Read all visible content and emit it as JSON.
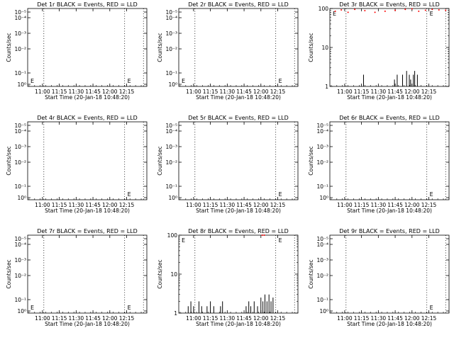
{
  "chart_data": [
    {
      "type": "line",
      "title": "Det 1r BLACK = Events, RED = LLD",
      "xlabel": "Start Time (20-Jan-18 10:48:20)",
      "ylabel": "Counts/sec",
      "ytick_labels": [
        "10⁰",
        "10⁻¹",
        "10⁻²",
        "10⁻³",
        "10⁻⁴",
        "10⁻⁵"
      ],
      "xtick_labels": [
        "11:00",
        "11:15",
        "11:30",
        "11:45",
        "12:00",
        "12:15"
      ],
      "markers": [
        "E",
        "E"
      ],
      "events": [],
      "lld": []
    },
    {
      "type": "line",
      "title": "Det 2r BLACK = Events, RED = LLD",
      "xlabel": "Start Time (20-Jan-18 10:48:20)",
      "ylabel": "Counts/sec",
      "ytick_labels": [
        "10⁰",
        "10⁻¹",
        "10⁻²",
        "10⁻³",
        "10⁻⁴",
        "10⁻⁵"
      ],
      "xtick_labels": [
        "11:00",
        "11:15",
        "11:30",
        "11:45",
        "12:00",
        "12:15"
      ],
      "markers": [
        "E",
        "E"
      ],
      "events": [],
      "lld": []
    },
    {
      "type": "line",
      "title": "Det 3r BLACK = Events, RED = LLD",
      "xlabel": "Start Time (20-Jan-18 10:48:20)",
      "ylabel": "Counts/sec",
      "ytick_labels": [
        "1",
        "10",
        "100"
      ],
      "xtick_labels": [
        "11:00",
        "11:15",
        "11:30",
        "11:45",
        "12:00",
        "12:15"
      ],
      "markers": [
        "E",
        "E"
      ],
      "events": [
        [
          11.28,
          1
        ],
        [
          11.28,
          2
        ],
        [
          11.3,
          1
        ],
        [
          11.72,
          1
        ],
        [
          11.74,
          1.5
        ],
        [
          11.76,
          1
        ],
        [
          11.78,
          2
        ],
        [
          11.8,
          1
        ],
        [
          11.84,
          1
        ],
        [
          11.86,
          2
        ],
        [
          11.9,
          1
        ],
        [
          11.92,
          2.5
        ],
        [
          11.94,
          1
        ],
        [
          11.96,
          2
        ],
        [
          11.98,
          1.5
        ],
        [
          12,
          1
        ],
        [
          12.02,
          2
        ],
        [
          12.04,
          2.5
        ],
        [
          12.06,
          1
        ],
        [
          12.08,
          2
        ],
        [
          12.1,
          1
        ]
      ],
      "lld": [
        [
          10.86,
          85
        ],
        [
          10.95,
          92
        ],
        [
          11.05,
          80
        ],
        [
          11.15,
          95
        ],
        [
          11.3,
          88
        ],
        [
          11.45,
          80
        ],
        [
          11.6,
          85
        ],
        [
          11.75,
          90
        ],
        [
          11.9,
          95
        ],
        [
          12.0,
          98
        ],
        [
          12.1,
          85
        ],
        [
          12.2,
          90
        ],
        [
          12.3,
          95
        ],
        [
          12.4,
          92
        ],
        [
          12.5,
          90
        ]
      ]
    },
    {
      "type": "line",
      "title": "Det 4r BLACK = Events, RED = LLD",
      "xlabel": "Start Time (20-Jan-18 10:48:20)",
      "ylabel": "Counts/sec",
      "ytick_labels": [
        "10⁰",
        "10⁻¹",
        "10⁻²",
        "10⁻³",
        "10⁻⁴",
        "10⁻⁵"
      ],
      "xtick_labels": [
        "11:00",
        "11:15",
        "11:30",
        "11:45",
        "12:00",
        "12:15"
      ],
      "markers": [
        "E"
      ],
      "events": [],
      "lld": []
    },
    {
      "type": "line",
      "title": "Det 5r BLACK = Events, RED = LLD",
      "xlabel": "Start Time (20-Jan-18 10:48:20)",
      "ylabel": "Counts/sec",
      "ytick_labels": [
        "10⁰",
        "10⁻¹",
        "10⁻²",
        "10⁻³",
        "10⁻⁴",
        "10⁻⁵"
      ],
      "xtick_labels": [
        "11:00",
        "11:15",
        "11:30",
        "11:45",
        "12:00",
        "12:15"
      ],
      "markers": [
        "E"
      ],
      "events": [],
      "lld": []
    },
    {
      "type": "line",
      "title": "Det 6r BLACK = Events, RED = LLD",
      "xlabel": "Start Time (20-Jan-18 10:48:20)",
      "ylabel": "Counts/sec",
      "ytick_labels": [
        "10⁰",
        "10⁻¹",
        "10⁻²",
        "10⁻³",
        "10⁻⁴",
        "10⁻⁵"
      ],
      "xtick_labels": [
        "11:00",
        "11:15",
        "11:30",
        "11:45",
        "12:00",
        "12:15"
      ],
      "markers": [
        "E"
      ],
      "events": [],
      "lld": []
    },
    {
      "type": "line",
      "title": "Det 7r BLACK = Events, RED = LLD",
      "xlabel": "Start Time (20-Jan-18 10:48:20)",
      "ylabel": "Counts/sec",
      "ytick_labels": [
        "10⁰",
        "10⁻¹",
        "10⁻²",
        "10⁻³",
        "10⁻⁴",
        "10⁻⁵"
      ],
      "xtick_labels": [
        "11:00",
        "11:15",
        "11:30",
        "11:45",
        "12:00",
        "12:15"
      ],
      "markers": [
        "E",
        "E"
      ],
      "events": [],
      "lld": []
    },
    {
      "type": "line",
      "title": "Det 8r BLACK = Events, RED = LLD",
      "xlabel": "Start Time (20-Jan-18 10:48:20)",
      "ylabel": "Counts/sec",
      "ytick_labels": [
        "1",
        "10",
        "100"
      ],
      "xtick_labels": [
        "11:00",
        "11:15",
        "11:30",
        "11:45",
        "12:00",
        "12:15"
      ],
      "markers": [
        "E",
        "E"
      ],
      "events": [
        [
          10.9,
          1
        ],
        [
          10.92,
          1.5
        ],
        [
          10.94,
          1
        ],
        [
          10.96,
          2
        ],
        [
          10.98,
          1
        ],
        [
          11.0,
          1.5
        ],
        [
          11.05,
          1
        ],
        [
          11.08,
          2
        ],
        [
          11.1,
          1
        ],
        [
          11.12,
          1.5
        ],
        [
          11.15,
          1
        ],
        [
          11.2,
          1.5
        ],
        [
          11.25,
          2
        ],
        [
          11.28,
          1
        ],
        [
          11.3,
          1.5
        ],
        [
          11.35,
          1
        ],
        [
          11.4,
          1.5
        ],
        [
          11.43,
          2
        ],
        [
          11.46,
          1
        ],
        [
          11.5,
          1
        ],
        [
          11.75,
          1
        ],
        [
          11.78,
          1.5
        ],
        [
          11.82,
          2
        ],
        [
          11.85,
          1.5
        ],
        [
          11.9,
          2
        ],
        [
          11.95,
          1.5
        ],
        [
          12.0,
          2.5
        ],
        [
          12.03,
          2
        ],
        [
          12.06,
          3
        ],
        [
          12.09,
          2
        ],
        [
          12.12,
          3
        ],
        [
          12.15,
          2
        ],
        [
          12.18,
          2.5
        ],
        [
          12.2,
          1
        ],
        [
          12.24,
          1
        ]
      ],
      "lld": [
        [
          12.02,
          100
        ],
        [
          12.05,
          100
        ]
      ]
    },
    {
      "type": "line",
      "title": "Det 9r BLACK = Events, RED = LLD",
      "xlabel": "Start Time (20-Jan-18 10:48:20)",
      "ylabel": "Counts/sec",
      "ytick_labels": [
        "10⁰",
        "10⁻¹",
        "10⁻²",
        "10⁻³",
        "10⁻⁴",
        "10⁻⁵"
      ],
      "xtick_labels": [
        "11:00",
        "11:15",
        "11:30",
        "11:45",
        "12:00",
        "12:15"
      ],
      "markers": [
        "E"
      ],
      "events": [],
      "lld": []
    }
  ]
}
